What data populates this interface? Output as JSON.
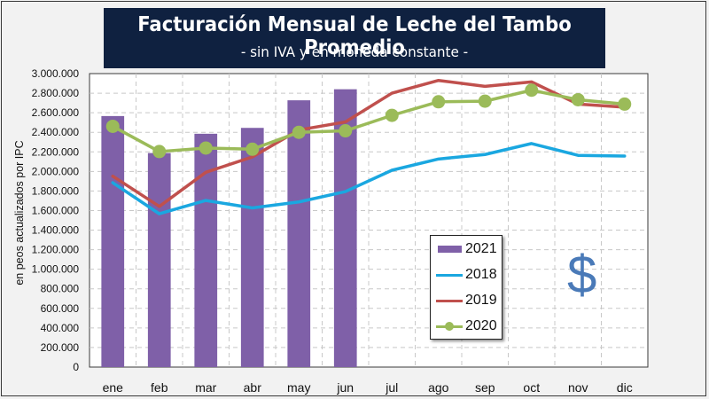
{
  "title": "Facturación Mensual de Leche del Tambo Promedio",
  "subtitle": "- sin IVA y en moneda constante -",
  "decoration": {
    "symbol": "$",
    "symbol_name": "dollar-sign-icon",
    "color": "#4a7ab8"
  },
  "colors": {
    "title_bg": "#0f2140",
    "2021": "#7f60a8",
    "2018": "#1aa7e0",
    "2019": "#c0504d",
    "2020": "#9bbb59"
  },
  "chart_data": {
    "type": "bar+line",
    "title": "Facturación Mensual de Leche del Tambo Promedio",
    "subtitle": "- sin IVA y en moneda constante -",
    "xlabel": "",
    "ylabel": "en peos actualizados por IPC",
    "categories": [
      "ene",
      "feb",
      "mar",
      "abr",
      "may",
      "jun",
      "jul",
      "ago",
      "sep",
      "oct",
      "nov",
      "dic"
    ],
    "ylim": [
      0,
      3000000
    ],
    "yticks": [
      0,
      200000,
      400000,
      600000,
      800000,
      1000000,
      1200000,
      1400000,
      1600000,
      1800000,
      2000000,
      2200000,
      2400000,
      2600000,
      2800000,
      3000000
    ],
    "ytick_labels": [
      "0",
      "200.000",
      "400.000",
      "600.000",
      "800.000",
      "1.000.000",
      "1.200.000",
      "1.400.000",
      "1.600.000",
      "1.800.000",
      "2.000.000",
      "2.200.000",
      "2.400.000",
      "2.600.000",
      "2.800.000",
      "3.000.000"
    ],
    "grid": true,
    "legend_position": "lower-center-right",
    "series": [
      {
        "name": "2021",
        "type": "bar",
        "color": "#7f60a8",
        "values": [
          2566000,
          2188000,
          2385000,
          2445000,
          2727000,
          2840000,
          null,
          null,
          null,
          null,
          null,
          null
        ]
      },
      {
        "name": "2018",
        "type": "line",
        "color": "#1aa7e0",
        "marker": false,
        "values": [
          1885000,
          1567000,
          1703000,
          1627000,
          1688000,
          1794000,
          2012000,
          2127000,
          2173000,
          2285000,
          2164000,
          2157000
        ]
      },
      {
        "name": "2019",
        "type": "line",
        "color": "#c0504d",
        "marker": false,
        "values": [
          1951000,
          1642000,
          1991000,
          2148000,
          2424000,
          2506000,
          2800000,
          2930000,
          2870000,
          2915000,
          2688000,
          2657000
        ]
      },
      {
        "name": "2020",
        "type": "line",
        "color": "#9bbb59",
        "marker": true,
        "values": [
          2461000,
          2203000,
          2239000,
          2227000,
          2400000,
          2415000,
          2573000,
          2712000,
          2718000,
          2830000,
          2733000,
          2688000
        ]
      }
    ]
  },
  "legend": [
    {
      "label": "2021",
      "kind": "bar"
    },
    {
      "label": "2018",
      "kind": "line"
    },
    {
      "label": "2019",
      "kind": "line"
    },
    {
      "label": "2020",
      "kind": "line-marker"
    }
  ]
}
